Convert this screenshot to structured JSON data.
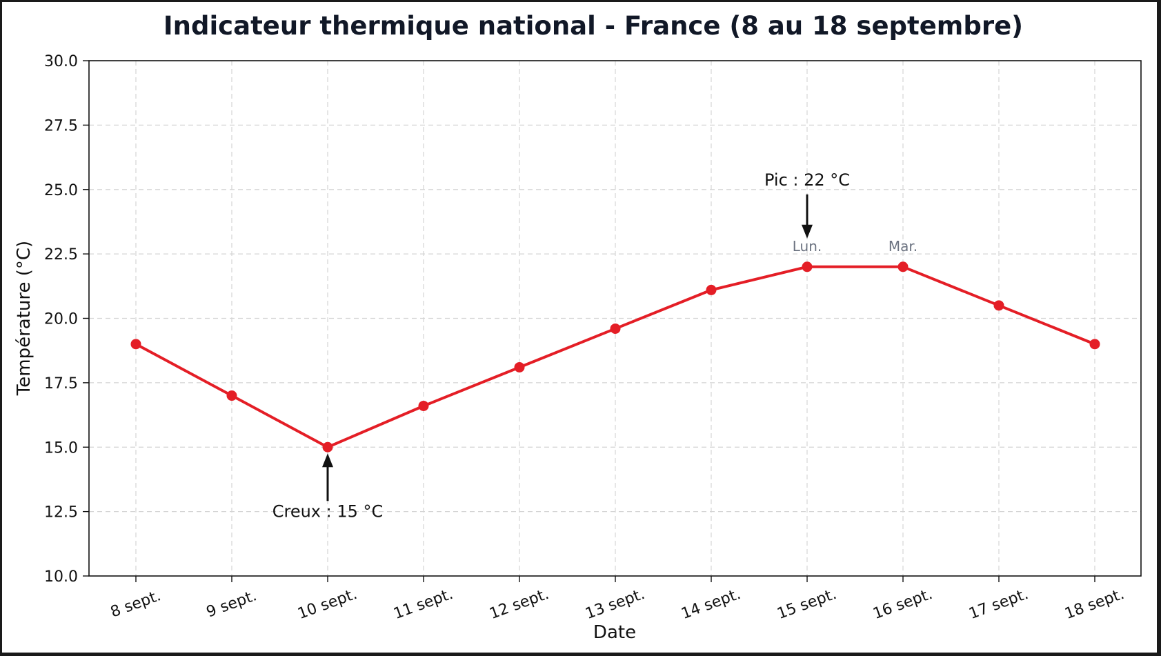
{
  "chart_data": {
    "type": "line",
    "title": "Indicateur thermique national - France (8 au 18 septembre)",
    "xlabel": "Date",
    "ylabel": "Température (°C)",
    "categories": [
      "8 sept.",
      "9 sept.",
      "10 sept.",
      "11 sept.",
      "12 sept.",
      "13 sept.",
      "14 sept.",
      "15 sept.",
      "16 sept.",
      "17 sept.",
      "18 sept."
    ],
    "series": [
      {
        "values": [
          19.0,
          17.0,
          15.0,
          16.6,
          18.1,
          19.6,
          21.1,
          22.0,
          22.0,
          20.5,
          19.0
        ],
        "color": "#e41e26"
      }
    ],
    "ylim": [
      10.0,
      30.0
    ],
    "yticks": [
      "10.0",
      "12.5",
      "15.0",
      "17.5",
      "20.0",
      "22.5",
      "25.0",
      "27.5",
      "30.0"
    ],
    "grid": true,
    "grid_style": "dashed",
    "annotations": [
      {
        "text": "Creux : 15 °C",
        "category": "10 sept.",
        "value": 15.0,
        "arrow": "up",
        "text_position": "below"
      },
      {
        "text": "Pic : 22 °C",
        "category": "15 sept.",
        "value": 22.0,
        "arrow": "down",
        "text_position": "above"
      }
    ],
    "point_labels": [
      {
        "text": "Lun.",
        "category": "15 sept."
      },
      {
        "text": "Mar.",
        "category": "16 sept."
      }
    ]
  }
}
